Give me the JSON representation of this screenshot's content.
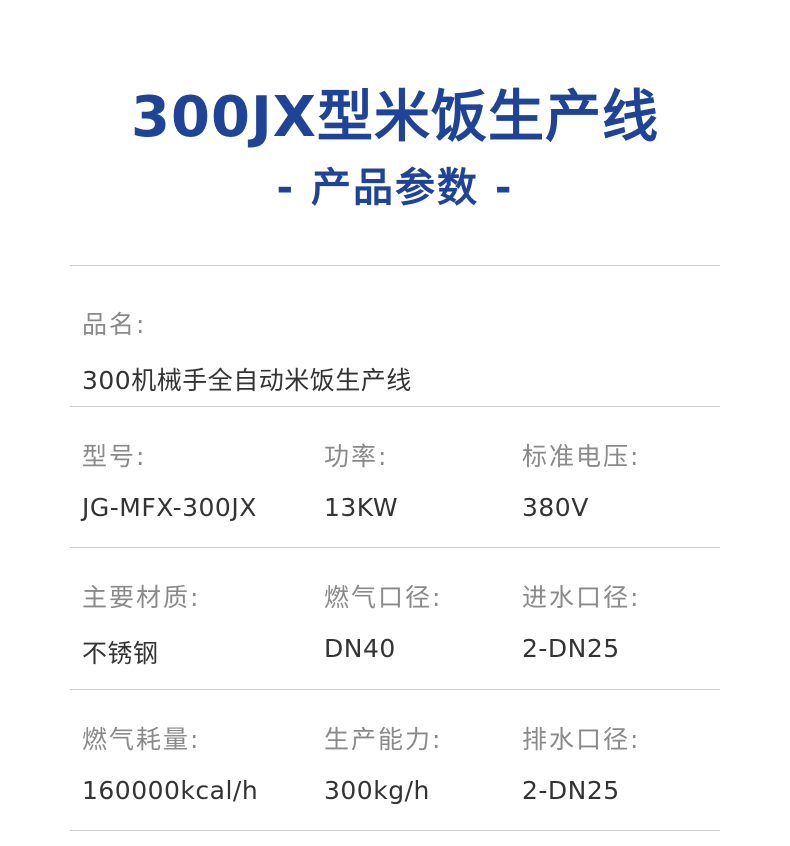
{
  "title": "300JX型米饭生产线",
  "subtitle": "- 产品参数 -",
  "colors": {
    "accent": "#1f4497",
    "label": "#8a8a8a",
    "value": "#333333",
    "divider": "#cfcfcf"
  },
  "rows": [
    [
      {
        "label": "品名:",
        "value": "300机械手全自动米饭生产线"
      }
    ],
    [
      {
        "label": "型号:",
        "value": "JG-MFX-300JX"
      },
      {
        "label": "功率:",
        "value": "13KW"
      },
      {
        "label": "标准电压:",
        "value": "380V"
      }
    ],
    [
      {
        "label": "主要材质:",
        "value": "不锈钢"
      },
      {
        "label": "燃气口径:",
        "value": "DN40"
      },
      {
        "label": "进水口径:",
        "value": "2-DN25"
      }
    ],
    [
      {
        "label": "燃气耗量:",
        "value": "160000kcal/h"
      },
      {
        "label": "生产能力:",
        "value": "300kg/h"
      },
      {
        "label": "排水口径:",
        "value": "2-DN25"
      }
    ]
  ]
}
